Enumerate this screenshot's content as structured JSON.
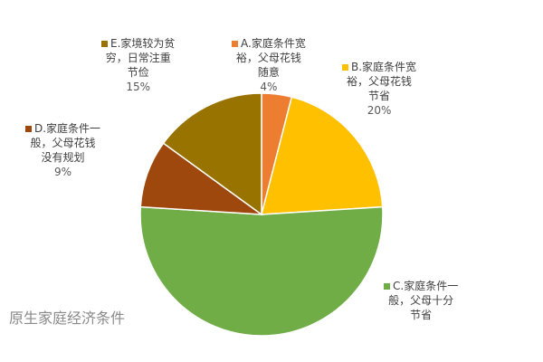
{
  "chart_data": {
    "type": "pie",
    "title": "原生家庭经济条件",
    "slices": [
      {
        "id": "A",
        "lines": [
          "A.家庭条件宽",
          "裕，父母花钱",
          "随意"
        ],
        "pct_label": "4%",
        "value": 4,
        "color": "#ED7D31"
      },
      {
        "id": "B",
        "lines": [
          "B.家庭条件宽",
          "裕，父母花钱",
          "节省"
        ],
        "pct_label": "20%",
        "value": 20,
        "color": "#FFC000"
      },
      {
        "id": "C",
        "lines": [
          "C.家庭条件一",
          "般，父母十分",
          "节省"
        ],
        "pct_label": "",
        "value": 52,
        "color": "#70AD47"
      },
      {
        "id": "D",
        "lines": [
          "D.家庭条件一",
          "般，父母花钱",
          "没有规划"
        ],
        "pct_label": "9%",
        "value": 9,
        "color": "#9E480E"
      },
      {
        "id": "E",
        "lines": [
          "E.家境较为贫",
          "穷，日常注重",
          "节俭"
        ],
        "pct_label": "15%",
        "value": 15,
        "color": "#997300"
      }
    ]
  }
}
